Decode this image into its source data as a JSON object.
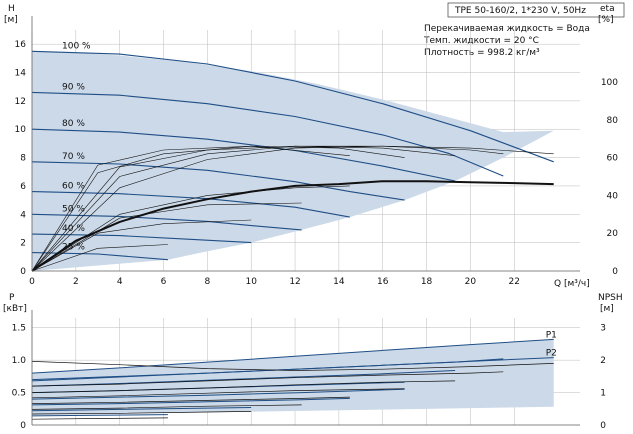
{
  "header": {
    "title": "TPE 50-160/2, 1*230 V, 50Hz",
    "info_lines": [
      "Перекачиваемая жидкость = Вода",
      "Темп. жидкости = 20 °C",
      "Плотность = 998.2 кг/м³"
    ]
  },
  "colors": {
    "fill": "#ccd9e8",
    "curve": "#1f4e86",
    "black": "#111111",
    "grid": "#bbbbbb"
  },
  "chart_data": [
    {
      "type": "line",
      "id": "qh",
      "ylabel_left": "H",
      "ylabel_left_unit": "[м]",
      "ylabel_right": "eta",
      "ylabel_right_unit": "[%]",
      "xlabel": "Q [м³/ч]",
      "xlim": [
        0,
        25
      ],
      "ylim": [
        0,
        17
      ],
      "x_ticks": [
        0,
        2,
        4,
        6,
        8,
        10,
        12,
        14,
        16,
        18,
        20,
        22
      ],
      "y_ticks": [
        0,
        2,
        4,
        6,
        8,
        10,
        12,
        14,
        16
      ],
      "eta_ticks": [
        0,
        20,
        40,
        60,
        80,
        100
      ],
      "eta_ylim": [
        0,
        127.5
      ],
      "grid": true,
      "operating_range": {
        "x": [
          0,
          1.5,
          4,
          7,
          10,
          13,
          16,
          19,
          21.5,
          23.8,
          21.5,
          19.3,
          17,
          14.5,
          12.3,
          10,
          8,
          6.2,
          0
        ],
        "y": [
          15.5,
          15.45,
          15.2,
          14.75,
          14.1,
          13.2,
          12.1,
          10.85,
          9.8,
          9.9,
          8.0,
          6.35,
          5.0,
          3.8,
          2.9,
          2.0,
          1.4,
          0.8,
          0
        ]
      },
      "series": [
        {
          "name": "100 %",
          "x": [
            0,
            4,
            8,
            12,
            16,
            20,
            23.8
          ],
          "y": [
            15.5,
            15.3,
            14.6,
            13.4,
            11.8,
            9.9,
            7.7
          ]
        },
        {
          "name": "90 %",
          "x": [
            0,
            4,
            8,
            12,
            16,
            19,
            21.5
          ],
          "y": [
            12.6,
            12.4,
            11.8,
            10.9,
            9.6,
            8.3,
            6.7
          ]
        },
        {
          "name": "80 %",
          "x": [
            0,
            4,
            8,
            12,
            16,
            19.3
          ],
          "y": [
            10.0,
            9.8,
            9.3,
            8.5,
            7.4,
            6.35
          ]
        },
        {
          "name": "70 %",
          "x": [
            0,
            4,
            8,
            12,
            14.5,
            17
          ],
          "y": [
            7.7,
            7.55,
            7.1,
            6.3,
            5.6,
            5.0
          ]
        },
        {
          "name": "60 %",
          "x": [
            0,
            4,
            8,
            12,
            14.5
          ],
          "y": [
            5.6,
            5.45,
            5.1,
            4.5,
            3.8
          ]
        },
        {
          "name": "50 %",
          "x": [
            0,
            4,
            8,
            10,
            12.3
          ],
          "y": [
            4.0,
            3.85,
            3.5,
            3.2,
            2.9
          ]
        },
        {
          "name": "40 %",
          "x": [
            0,
            4,
            7,
            10
          ],
          "y": [
            2.6,
            2.5,
            2.25,
            2.0
          ]
        },
        {
          "name": "25 %",
          "x": [
            0,
            3,
            6.2
          ],
          "y": [
            1.3,
            1.2,
            0.8
          ]
        }
      ],
      "eta_main": {
        "x": [
          0,
          2,
          4,
          6,
          8,
          10,
          12,
          14,
          16,
          18,
          20,
          22,
          23.8
        ],
        "eta": [
          0,
          16,
          26,
          33,
          38,
          42,
          45,
          46,
          47.5,
          47.5,
          47,
          46.5,
          46
        ]
      },
      "eta_max_family": [
        {
          "x": [
            0,
            4,
            8,
            12,
            16,
            20,
            23.8
          ],
          "eta": [
            0,
            44,
            59,
            65,
            66,
            65,
            62
          ]
        },
        {
          "x": [
            0,
            4,
            8,
            12,
            16,
            20,
            21.5
          ],
          "eta": [
            0,
            50,
            62,
            66,
            66,
            64,
            62
          ]
        },
        {
          "x": [
            0,
            4,
            8,
            12,
            16,
            19.3
          ],
          "eta": [
            0,
            55,
            64,
            66,
            65,
            61
          ]
        },
        {
          "x": [
            0,
            3,
            6,
            10,
            14,
            17
          ],
          "eta": [
            0,
            52,
            62,
            66,
            65,
            60
          ]
        },
        {
          "x": [
            0,
            3,
            6,
            10,
            14.5
          ],
          "eta": [
            0,
            56,
            64,
            66,
            61
          ]
        }
      ],
      "eta_low_family": [
        {
          "x": [
            0,
            4,
            8,
            12,
            14.5
          ],
          "eta": [
            0,
            30,
            40,
            44,
            45
          ]
        },
        {
          "x": [
            0,
            4,
            8,
            12.3
          ],
          "eta": [
            0,
            28,
            35,
            36
          ]
        },
        {
          "x": [
            0,
            3,
            6,
            10
          ],
          "eta": [
            0,
            20,
            25,
            27
          ]
        },
        {
          "x": [
            0,
            3,
            6.2
          ],
          "eta": [
            0,
            12,
            14
          ]
        }
      ]
    },
    {
      "type": "line",
      "id": "power",
      "ylabel_left": "P",
      "ylabel_left_unit": "[кВт]",
      "ylabel_right": "NPSH",
      "ylabel_right_unit": "[м]",
      "xlim": [
        0,
        25
      ],
      "ylim": [
        0,
        1.65
      ],
      "y_ticks": [
        0,
        0.5,
        1.0,
        1.5
      ],
      "npsh_ticks": [
        0,
        1,
        2,
        3
      ],
      "npsh_ylim": [
        0,
        3.3
      ],
      "grid": true,
      "operating_range": {
        "x": [
          0,
          4,
          8,
          12,
          16,
          20,
          23.8,
          23.8,
          0
        ],
        "y": [
          0.8,
          0.88,
          0.97,
          1.06,
          1.15,
          1.24,
          1.32,
          0.28,
          0.15
        ]
      },
      "series": [
        {
          "name": "P1",
          "x": [
            0,
            4,
            8,
            12,
            16,
            20,
            23.8
          ],
          "y": [
            0.8,
            0.88,
            0.97,
            1.06,
            1.15,
            1.24,
            1.32
          ]
        },
        {
          "name": "P2",
          "x": [
            0,
            4,
            8,
            12,
            16,
            20,
            23.8
          ],
          "y": [
            0.68,
            0.74,
            0.8,
            0.86,
            0.92,
            0.98,
            1.04
          ]
        },
        {
          "name": "",
          "x": [
            0,
            4,
            8,
            12,
            16,
            19.3,
            21.5
          ],
          "y": [
            0.7,
            0.75,
            0.8,
            0.86,
            0.92,
            0.97,
            1.02
          ]
        },
        {
          "name": "",
          "x": [
            0,
            4,
            8,
            12,
            16,
            19.3
          ],
          "y": [
            0.6,
            0.64,
            0.69,
            0.74,
            0.79,
            0.84
          ]
        },
        {
          "name": "",
          "x": [
            0,
            4,
            8,
            12,
            17
          ],
          "y": [
            0.5,
            0.53,
            0.57,
            0.61,
            0.66
          ]
        },
        {
          "name": "",
          "x": [
            0,
            4,
            8,
            12.3,
            17
          ],
          "y": [
            0.4,
            0.43,
            0.46,
            0.5,
            0.55
          ]
        },
        {
          "name": "",
          "x": [
            0,
            4,
            8,
            12.3,
            14.5
          ],
          "y": [
            0.31,
            0.33,
            0.36,
            0.39,
            0.41
          ]
        },
        {
          "name": "",
          "x": [
            0,
            4,
            8,
            10
          ],
          "y": [
            0.22,
            0.24,
            0.26,
            0.27
          ]
        },
        {
          "name": "",
          "x": [
            0,
            3,
            6.2
          ],
          "y": [
            0.14,
            0.15,
            0.16
          ]
        }
      ],
      "black_lines": [
        {
          "x": [
            0,
            4,
            8,
            12,
            16,
            20,
            23.8
          ],
          "y": [
            0.98,
            0.93,
            0.87,
            0.84,
            0.86,
            0.9,
            0.95
          ]
        },
        {
          "x": [
            0,
            4,
            8,
            12,
            16,
            20,
            21.5
          ],
          "y": [
            0.6,
            0.63,
            0.68,
            0.73,
            0.77,
            0.8,
            0.82
          ]
        },
        {
          "x": [
            0,
            4,
            8,
            12,
            16,
            19.3
          ],
          "y": [
            0.5,
            0.53,
            0.57,
            0.62,
            0.66,
            0.68
          ]
        },
        {
          "x": [
            0,
            4,
            8,
            12,
            17
          ],
          "y": [
            0.42,
            0.45,
            0.49,
            0.53,
            0.56
          ]
        },
        {
          "x": [
            0,
            4,
            8,
            12.3,
            14.5
          ],
          "y": [
            0.33,
            0.35,
            0.38,
            0.41,
            0.43
          ]
        },
        {
          "x": [
            0,
            4,
            8,
            12.3
          ],
          "y": [
            0.24,
            0.26,
            0.29,
            0.31
          ]
        },
        {
          "x": [
            0,
            4,
            8,
            10
          ],
          "y": [
            0.17,
            0.18,
            0.2,
            0.21
          ]
        },
        {
          "x": [
            0,
            3,
            6.2
          ],
          "y": [
            0.09,
            0.1,
            0.11
          ]
        }
      ]
    }
  ]
}
